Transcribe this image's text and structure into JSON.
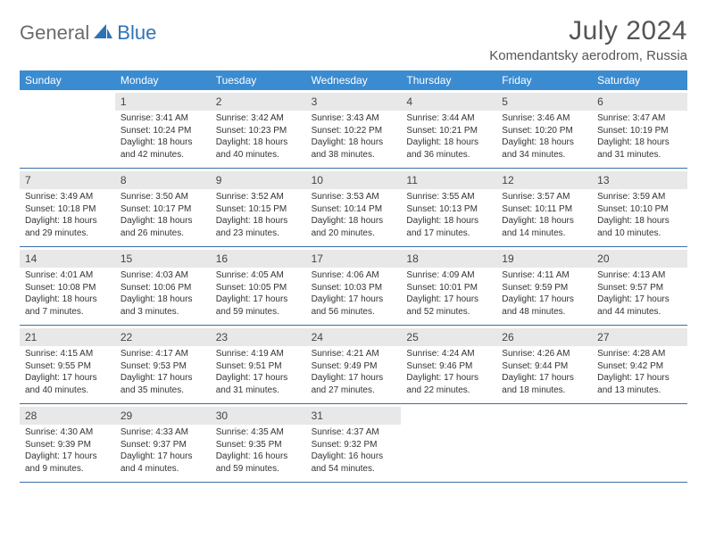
{
  "brand": {
    "part1": "General",
    "part2": "Blue"
  },
  "title": "July 2024",
  "location": "Komendantsky aerodrom, Russia",
  "colors": {
    "header_bg": "#3b8bd0",
    "header_text": "#ffffff",
    "date_bg": "#e8e8e8",
    "rule": "#3b6ea5",
    "brand_gray": "#6b6b6b",
    "brand_blue": "#2e74b5"
  },
  "typography": {
    "title_fontsize": 30,
    "location_fontsize": 15,
    "dayhead_fontsize": 12,
    "date_fontsize": 12,
    "info_fontsize": 10
  },
  "day_names": [
    "Sunday",
    "Monday",
    "Tuesday",
    "Wednesday",
    "Thursday",
    "Friday",
    "Saturday"
  ],
  "weeks": [
    [
      {
        "date": "",
        "sunrise": "",
        "sunset": "",
        "daylight1": "",
        "daylight2": ""
      },
      {
        "date": "1",
        "sunrise": "Sunrise: 3:41 AM",
        "sunset": "Sunset: 10:24 PM",
        "daylight1": "Daylight: 18 hours",
        "daylight2": "and 42 minutes."
      },
      {
        "date": "2",
        "sunrise": "Sunrise: 3:42 AM",
        "sunset": "Sunset: 10:23 PM",
        "daylight1": "Daylight: 18 hours",
        "daylight2": "and 40 minutes."
      },
      {
        "date": "3",
        "sunrise": "Sunrise: 3:43 AM",
        "sunset": "Sunset: 10:22 PM",
        "daylight1": "Daylight: 18 hours",
        "daylight2": "and 38 minutes."
      },
      {
        "date": "4",
        "sunrise": "Sunrise: 3:44 AM",
        "sunset": "Sunset: 10:21 PM",
        "daylight1": "Daylight: 18 hours",
        "daylight2": "and 36 minutes."
      },
      {
        "date": "5",
        "sunrise": "Sunrise: 3:46 AM",
        "sunset": "Sunset: 10:20 PM",
        "daylight1": "Daylight: 18 hours",
        "daylight2": "and 34 minutes."
      },
      {
        "date": "6",
        "sunrise": "Sunrise: 3:47 AM",
        "sunset": "Sunset: 10:19 PM",
        "daylight1": "Daylight: 18 hours",
        "daylight2": "and 31 minutes."
      }
    ],
    [
      {
        "date": "7",
        "sunrise": "Sunrise: 3:49 AM",
        "sunset": "Sunset: 10:18 PM",
        "daylight1": "Daylight: 18 hours",
        "daylight2": "and 29 minutes."
      },
      {
        "date": "8",
        "sunrise": "Sunrise: 3:50 AM",
        "sunset": "Sunset: 10:17 PM",
        "daylight1": "Daylight: 18 hours",
        "daylight2": "and 26 minutes."
      },
      {
        "date": "9",
        "sunrise": "Sunrise: 3:52 AM",
        "sunset": "Sunset: 10:15 PM",
        "daylight1": "Daylight: 18 hours",
        "daylight2": "and 23 minutes."
      },
      {
        "date": "10",
        "sunrise": "Sunrise: 3:53 AM",
        "sunset": "Sunset: 10:14 PM",
        "daylight1": "Daylight: 18 hours",
        "daylight2": "and 20 minutes."
      },
      {
        "date": "11",
        "sunrise": "Sunrise: 3:55 AM",
        "sunset": "Sunset: 10:13 PM",
        "daylight1": "Daylight: 18 hours",
        "daylight2": "and 17 minutes."
      },
      {
        "date": "12",
        "sunrise": "Sunrise: 3:57 AM",
        "sunset": "Sunset: 10:11 PM",
        "daylight1": "Daylight: 18 hours",
        "daylight2": "and 14 minutes."
      },
      {
        "date": "13",
        "sunrise": "Sunrise: 3:59 AM",
        "sunset": "Sunset: 10:10 PM",
        "daylight1": "Daylight: 18 hours",
        "daylight2": "and 10 minutes."
      }
    ],
    [
      {
        "date": "14",
        "sunrise": "Sunrise: 4:01 AM",
        "sunset": "Sunset: 10:08 PM",
        "daylight1": "Daylight: 18 hours",
        "daylight2": "and 7 minutes."
      },
      {
        "date": "15",
        "sunrise": "Sunrise: 4:03 AM",
        "sunset": "Sunset: 10:06 PM",
        "daylight1": "Daylight: 18 hours",
        "daylight2": "and 3 minutes."
      },
      {
        "date": "16",
        "sunrise": "Sunrise: 4:05 AM",
        "sunset": "Sunset: 10:05 PM",
        "daylight1": "Daylight: 17 hours",
        "daylight2": "and 59 minutes."
      },
      {
        "date": "17",
        "sunrise": "Sunrise: 4:06 AM",
        "sunset": "Sunset: 10:03 PM",
        "daylight1": "Daylight: 17 hours",
        "daylight2": "and 56 minutes."
      },
      {
        "date": "18",
        "sunrise": "Sunrise: 4:09 AM",
        "sunset": "Sunset: 10:01 PM",
        "daylight1": "Daylight: 17 hours",
        "daylight2": "and 52 minutes."
      },
      {
        "date": "19",
        "sunrise": "Sunrise: 4:11 AM",
        "sunset": "Sunset: 9:59 PM",
        "daylight1": "Daylight: 17 hours",
        "daylight2": "and 48 minutes."
      },
      {
        "date": "20",
        "sunrise": "Sunrise: 4:13 AM",
        "sunset": "Sunset: 9:57 PM",
        "daylight1": "Daylight: 17 hours",
        "daylight2": "and 44 minutes."
      }
    ],
    [
      {
        "date": "21",
        "sunrise": "Sunrise: 4:15 AM",
        "sunset": "Sunset: 9:55 PM",
        "daylight1": "Daylight: 17 hours",
        "daylight2": "and 40 minutes."
      },
      {
        "date": "22",
        "sunrise": "Sunrise: 4:17 AM",
        "sunset": "Sunset: 9:53 PM",
        "daylight1": "Daylight: 17 hours",
        "daylight2": "and 35 minutes."
      },
      {
        "date": "23",
        "sunrise": "Sunrise: 4:19 AM",
        "sunset": "Sunset: 9:51 PM",
        "daylight1": "Daylight: 17 hours",
        "daylight2": "and 31 minutes."
      },
      {
        "date": "24",
        "sunrise": "Sunrise: 4:21 AM",
        "sunset": "Sunset: 9:49 PM",
        "daylight1": "Daylight: 17 hours",
        "daylight2": "and 27 minutes."
      },
      {
        "date": "25",
        "sunrise": "Sunrise: 4:24 AM",
        "sunset": "Sunset: 9:46 PM",
        "daylight1": "Daylight: 17 hours",
        "daylight2": "and 22 minutes."
      },
      {
        "date": "26",
        "sunrise": "Sunrise: 4:26 AM",
        "sunset": "Sunset: 9:44 PM",
        "daylight1": "Daylight: 17 hours",
        "daylight2": "and 18 minutes."
      },
      {
        "date": "27",
        "sunrise": "Sunrise: 4:28 AM",
        "sunset": "Sunset: 9:42 PM",
        "daylight1": "Daylight: 17 hours",
        "daylight2": "and 13 minutes."
      }
    ],
    [
      {
        "date": "28",
        "sunrise": "Sunrise: 4:30 AM",
        "sunset": "Sunset: 9:39 PM",
        "daylight1": "Daylight: 17 hours",
        "daylight2": "and 9 minutes."
      },
      {
        "date": "29",
        "sunrise": "Sunrise: 4:33 AM",
        "sunset": "Sunset: 9:37 PM",
        "daylight1": "Daylight: 17 hours",
        "daylight2": "and 4 minutes."
      },
      {
        "date": "30",
        "sunrise": "Sunrise: 4:35 AM",
        "sunset": "Sunset: 9:35 PM",
        "daylight1": "Daylight: 16 hours",
        "daylight2": "and 59 minutes."
      },
      {
        "date": "31",
        "sunrise": "Sunrise: 4:37 AM",
        "sunset": "Sunset: 9:32 PM",
        "daylight1": "Daylight: 16 hours",
        "daylight2": "and 54 minutes."
      },
      {
        "date": "",
        "sunrise": "",
        "sunset": "",
        "daylight1": "",
        "daylight2": ""
      },
      {
        "date": "",
        "sunrise": "",
        "sunset": "",
        "daylight1": "",
        "daylight2": ""
      },
      {
        "date": "",
        "sunrise": "",
        "sunset": "",
        "daylight1": "",
        "daylight2": ""
      }
    ]
  ]
}
